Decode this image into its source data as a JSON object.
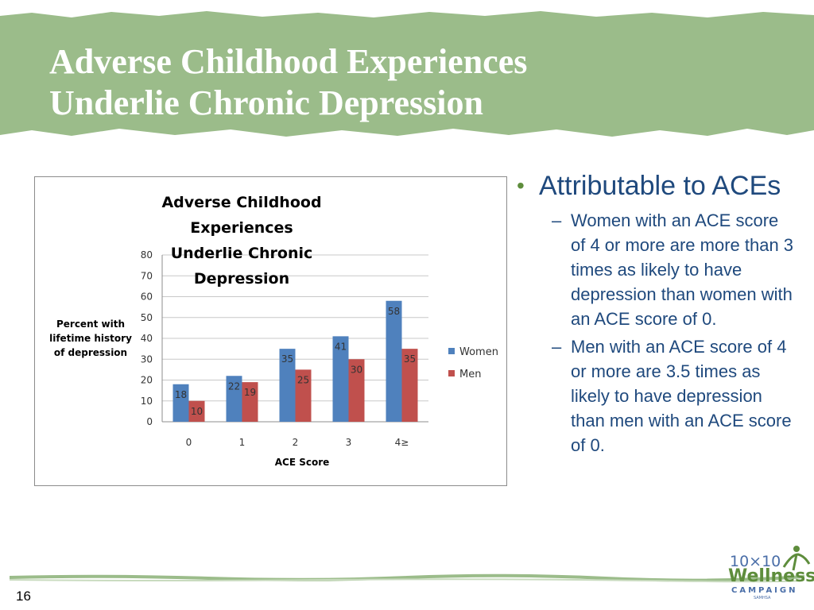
{
  "slide": {
    "title_line1": "Adverse Childhood Experiences",
    "title_line2": "Underlie Chronic Depression",
    "page_number": "16"
  },
  "colors": {
    "banner": "#9bbc8a",
    "women": "#4f81bd",
    "men": "#c0504d",
    "bullet_text": "#1f497d",
    "bullet_dot": "#5e8d3c"
  },
  "chart_data": {
    "type": "bar",
    "title_line1": "Adverse Childhood Experiences",
    "title_line2": "Underlie Chronic Depression",
    "xlabel": "ACE Score",
    "ylabel_lines": [
      "Percent with",
      "lifetime history",
      "of depression"
    ],
    "categories": [
      "0",
      "1",
      "2",
      "3",
      "4≥"
    ],
    "series": [
      {
        "name": "Women",
        "values": [
          18,
          22,
          35,
          41,
          58
        ]
      },
      {
        "name": "Men",
        "values": [
          10,
          19,
          25,
          30,
          35
        ]
      }
    ],
    "ylim": [
      0,
      80
    ],
    "yticks": [
      0,
      10,
      20,
      30,
      40,
      50,
      60,
      70,
      80
    ],
    "grid": true,
    "legend_position": "right",
    "data_labels": true
  },
  "bullets": {
    "main": "Attributable to ACEs",
    "subs": [
      "Women with an ACE score of 4 or more are more than 3 times as likely to have depression than women with an ACE score of 0.",
      "Men with an ACE score of 4 or more are 3.5 times as likely to have depression than men with an ACE score of 0."
    ]
  },
  "logo": {
    "top": "10×10",
    "main": "Wellness",
    "sub": "CAMPAIGN",
    "tiny": "SAMHSA"
  }
}
